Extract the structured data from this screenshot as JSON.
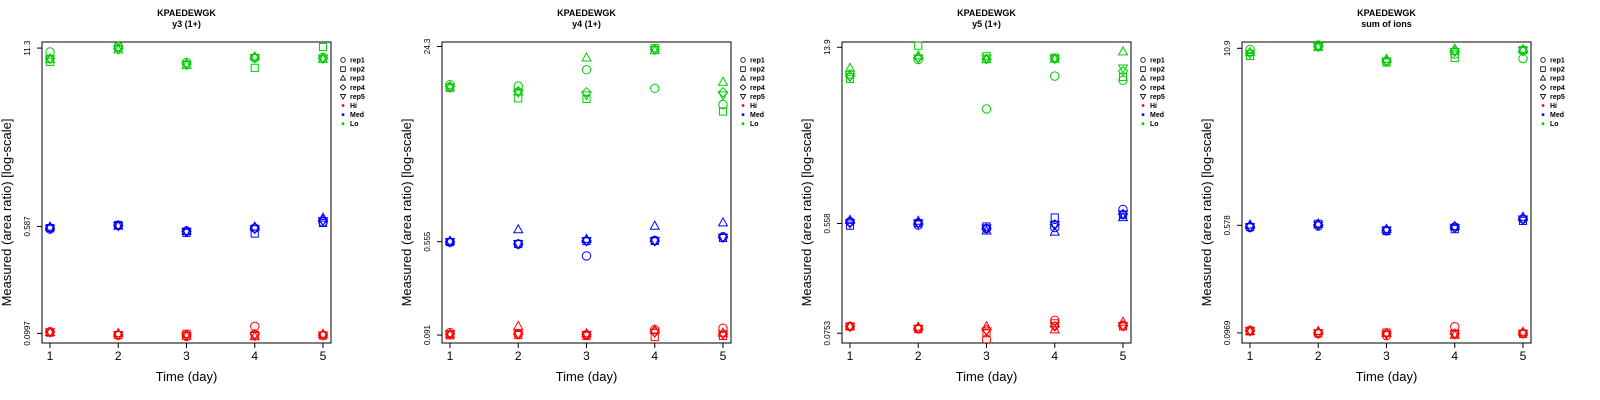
{
  "chart_data": [
    {
      "type": "scatter",
      "title": "KPAEDEWGK",
      "subtitle": "y3 (1+)",
      "xlabel": "Time (day)",
      "ylabel": "Measured (area ratio) [log-scale]",
      "x_ticks": [
        "1",
        "2",
        "3",
        "4",
        "5"
      ],
      "y_ticks": [
        {
          "value": 0.0997,
          "label": "0.0997"
        },
        {
          "value": 0.587,
          "label": "0.587"
        },
        {
          "value": 11.3,
          "label": "11.3"
        }
      ],
      "ylim": [
        0.085,
        12.5
      ],
      "ylog": true,
      "shapes": [
        "circle",
        "square",
        "triangle-up",
        "diamond",
        "triangle-down"
      ],
      "groups": [
        {
          "name": "Hi",
          "color": "#ff0000",
          "reps": [
            [
              0.1025,
              0.0965,
              0.0948,
              0.112,
              0.0968
            ],
            [
              0.101,
              0.097,
              0.099,
              0.0975,
              0.0962
            ],
            [
              0.1015,
              0.0995,
              0.0955,
              0.0945,
              0.0985
            ],
            [
              0.1015,
              0.098,
              0.0975,
              0.0985,
              0.0972
            ],
            [
              0.102,
              0.0975,
              0.0962,
              0.096,
              0.0968
            ]
          ]
        },
        {
          "name": "Med",
          "color": "#0000ff",
          "reps": [
            [
              0.562,
              0.597,
              0.545,
              0.572,
              0.632
            ],
            [
              0.572,
              0.602,
              0.528,
              0.522,
              0.622
            ],
            [
              0.582,
              0.592,
              0.542,
              0.582,
              0.675
            ],
            [
              0.572,
              0.598,
              0.538,
              0.568,
              0.652
            ],
            [
              0.568,
              0.595,
              0.54,
              0.565,
              0.645
            ]
          ]
        },
        {
          "name": "Lo",
          "color": "#00cc00",
          "reps": [
            [
              10.6,
              11.6,
              8.9,
              9.6,
              9.7
            ],
            [
              9.0,
              11.4,
              8.55,
              8.15,
              11.5
            ],
            [
              9.4,
              11.0,
              8.5,
              9.8,
              9.4
            ],
            [
              9.5,
              11.2,
              8.7,
              9.7,
              9.5
            ],
            [
              9.45,
              11.1,
              8.6,
              9.65,
              9.55
            ]
          ]
        }
      ]
    },
    {
      "type": "scatter",
      "title": "KPAEDEWGK",
      "subtitle": "y4 (1+)",
      "xlabel": "Time (day)",
      "ylabel": "Measured (area ratio) [log-scale]",
      "x_ticks": [
        "1",
        "2",
        "3",
        "4",
        "5"
      ],
      "y_ticks": [
        {
          "value": 0.091,
          "label": "0.091"
        },
        {
          "value": 0.555,
          "label": "0.555"
        },
        {
          "value": 24.3,
          "label": "24.3"
        }
      ],
      "ylim": [
        0.078,
        26.5
      ],
      "ylog": true,
      "shapes": [
        "circle",
        "square",
        "triangle-up",
        "diamond",
        "triangle-down"
      ],
      "groups": [
        {
          "name": "Hi",
          "color": "#ff0000",
          "reps": [
            [
              0.0955,
              0.0935,
              0.0915,
              0.101,
              0.104
            ],
            [
              0.0905,
              0.091,
              0.0895,
              0.0875,
              0.0895
            ],
            [
              0.092,
              0.108,
              0.0935,
              0.1005,
              0.0945
            ],
            [
              0.0925,
              0.0925,
              0.092,
              0.0965,
              0.093
            ],
            [
              0.093,
              0.0928,
              0.0918,
              0.0955,
              0.0925
            ]
          ]
        },
        {
          "name": "Med",
          "color": "#0000ff",
          "reps": [
            [
              0.551,
              0.529,
              0.421,
              0.569,
              0.611
            ],
            [
              0.551,
              0.531,
              0.561,
              0.563,
              0.596
            ],
            [
              0.561,
              0.701,
              0.581,
              0.751,
              0.801
            ],
            [
              0.551,
              0.531,
              0.565,
              0.561,
              0.605
            ],
            [
              0.553,
              0.533,
              0.563,
              0.565,
              0.603
            ]
          ]
        },
        {
          "name": "Lo",
          "color": "#00cc00",
          "reps": [
            [
              11.6,
              11.3,
              15.5,
              10.8,
              7.9
            ],
            [
              10.9,
              8.9,
              8.8,
              23.5,
              6.9
            ],
            [
              11.1,
              10.1,
              19.5,
              22.5,
              12.2
            ],
            [
              11.2,
              10.2,
              10.0,
              23.0,
              10.0
            ],
            [
              11.0,
              10.0,
              9.5,
              22.8,
              9.5
            ]
          ]
        }
      ]
    },
    {
      "type": "scatter",
      "title": "KPAEDEWGK",
      "subtitle": "y5 (1+)",
      "xlabel": "Time (day)",
      "ylabel": "Measured (area ratio) [log-scale]",
      "x_ticks": [
        "1",
        "2",
        "3",
        "4",
        "5"
      ],
      "y_ticks": [
        {
          "value": 0.0753,
          "label": "0.0753"
        },
        {
          "value": 0.558,
          "label": "0.558"
        },
        {
          "value": 13.9,
          "label": "13.9"
        }
      ],
      "ylim": [
        0.063,
        15.3
      ],
      "ylog": true,
      "shapes": [
        "circle",
        "square",
        "triangle-up",
        "diamond",
        "triangle-down"
      ],
      "groups": [
        {
          "name": "Hi",
          "color": "#ff0000",
          "reps": [
            [
              0.0852,
              0.0818,
              0.0672,
              0.0952,
              0.0872
            ],
            [
              0.0852,
              0.0812,
              0.0752,
              0.0902,
              0.0852
            ],
            [
              0.0852,
              0.0842,
              0.0852,
              0.0802,
              0.0922
            ],
            [
              0.0852,
              0.0822,
              0.0802,
              0.0852,
              0.0862
            ],
            [
              0.0852,
              0.0822,
              0.0782,
              0.0862,
              0.0862
            ]
          ]
        },
        {
          "name": "Med",
          "color": "#0000ff",
          "reps": [
            [
              0.576,
              0.542,
              0.508,
              0.518,
              0.721
            ],
            [
              0.536,
              0.562,
              0.528,
              0.622,
              0.651
            ],
            [
              0.592,
              0.582,
              0.488,
              0.478,
              0.622
            ],
            [
              0.566,
              0.562,
              0.508,
              0.548,
              0.662
            ],
            [
              0.562,
              0.56,
              0.512,
              0.542,
              0.662
            ]
          ]
        },
        {
          "name": "Lo",
          "color": "#00cc00",
          "reps": [
            [
              8.51,
              11.1,
              4.51,
              8.21,
              7.61
            ],
            [
              7.81,
              14.3,
              11.8,
              11.5,
              8.1
            ],
            [
              9.51,
              11.9,
              11.1,
              11.2,
              12.8
            ],
            [
              8.21,
              11.5,
              11.2,
              11.3,
              9.0
            ],
            [
              8.11,
              11.4,
              11.4,
              11.3,
              9.5
            ]
          ]
        }
      ]
    },
    {
      "type": "scatter",
      "title": "KPAEDEWGK",
      "subtitle": "sum of ions",
      "xlabel": "Time (day)",
      "ylabel": "Measured (area ratio) [log-scale]",
      "x_ticks": [
        "1",
        "2",
        "3",
        "4",
        "5"
      ],
      "y_ticks": [
        {
          "value": 0.0969,
          "label": "0.0969"
        },
        {
          "value": 0.578,
          "label": "0.578"
        },
        {
          "value": 10.9,
          "label": "10.9"
        }
      ],
      "ylim": [
        0.082,
        12.1
      ],
      "ylog": true,
      "shapes": [
        "circle",
        "square",
        "triangle-up",
        "diamond",
        "triangle-down"
      ],
      "groups": [
        {
          "name": "Hi",
          "color": "#ff0000",
          "reps": [
            [
              0.1015,
              0.0955,
              0.0928,
              0.1075,
              0.0962
            ],
            [
              0.0995,
              0.0965,
              0.0975,
              0.0958,
              0.0955
            ],
            [
              0.0995,
              0.0995,
              0.0965,
              0.0935,
              0.0982
            ],
            [
              0.1,
              0.0972,
              0.0962,
              0.0958,
              0.0965
            ],
            [
              0.1005,
              0.0968,
              0.095,
              0.0952,
              0.0962
            ]
          ]
        },
        {
          "name": "Med",
          "color": "#0000ff",
          "reps": [
            [
              0.558,
              0.572,
              0.528,
              0.562,
              0.642
            ],
            [
              0.562,
              0.592,
              0.525,
              0.542,
              0.622
            ],
            [
              0.582,
              0.592,
              0.542,
              0.568,
              0.662
            ],
            [
              0.565,
              0.582,
              0.532,
              0.56,
              0.645
            ],
            [
              0.562,
              0.58,
              0.534,
              0.557,
              0.64
            ]
          ]
        },
        {
          "name": "Lo",
          "color": "#00cc00",
          "reps": [
            [
              10.7,
              11.5,
              8.8,
              9.9,
              9.2
            ],
            [
              9.6,
              11.3,
              8.6,
              9.3,
              10.6
            ],
            [
              10.2,
              11.1,
              9.1,
              10.8,
              10.7
            ],
            [
              10.1,
              11.2,
              8.9,
              10.4,
              10.4
            ],
            [
              10.0,
              11.2,
              8.8,
              10.3,
              10.5
            ]
          ]
        }
      ]
    }
  ],
  "legend": {
    "entries": [
      "rep1",
      "rep2",
      "rep3",
      "rep4",
      "rep5",
      "Hi",
      "Med",
      "Lo"
    ]
  }
}
